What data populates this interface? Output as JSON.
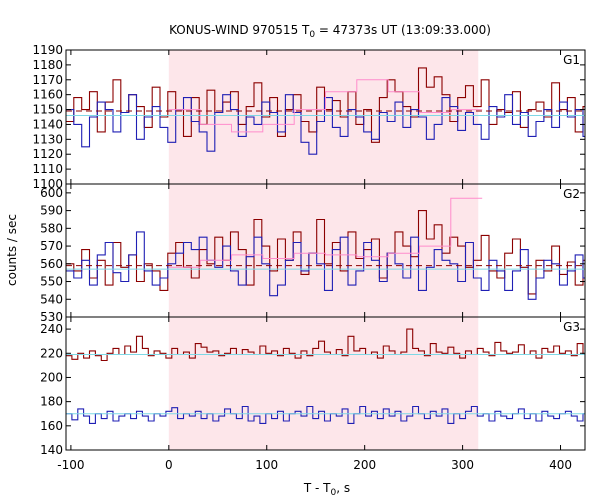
{
  "chart_data": {
    "type": "line",
    "title_main": "KONUS-WIND 970515 T",
    "title_sub": "0",
    "title_rest": " = 47373s UT (13:09:33.000)",
    "ylabel": "counts / sec",
    "xlabel_main": "T - T",
    "xlabel_sub": "0",
    "xlabel_rest": ", s",
    "xlim": [
      -105,
      425
    ],
    "xticks": [
      -100,
      0,
      100,
      200,
      300,
      400
    ],
    "shaded_interval": [
      0,
      316
    ],
    "colors": {
      "shade": "#fde6ea",
      "dark_red": "#8b0000",
      "blue": "#1f1fb4",
      "pink": "#ff8ccc",
      "cyan": "#7fd8e6"
    },
    "panels": [
      {
        "label": "G1",
        "ylim": [
          1100,
          1190
        ],
        "yticks": [
          1100,
          1110,
          1120,
          1130,
          1140,
          1150,
          1160,
          1170,
          1180,
          1190
        ],
        "series": [
          {
            "color": "dark_red",
            "dt": 8,
            "values": [
              1142,
              1158,
              1150,
              1162,
              1135,
              1155,
              1170,
              1148,
              1160,
              1152,
              1138,
              1165,
              1145,
              1162,
              1150,
              1132,
              1158,
              1140,
              1163,
              1148,
              1155,
              1162,
              1140,
              1152,
              1168,
              1145,
              1158,
              1132,
              1150,
              1160,
              1142,
              1135,
              1165,
              1150,
              1156,
              1145,
              1162,
              1140,
              1150,
              1128,
              1158,
              1170,
              1162,
              1152,
              1145,
              1178,
              1165,
              1172,
              1160,
              1142,
              1158,
              1166,
              1152,
              1170,
              1140,
              1150,
              1148,
              1162,
              1138,
              1150,
              1155,
              1145,
              1168,
              1150,
              1158,
              1135,
              1152,
              1140
            ]
          },
          {
            "color": "blue",
            "dt": 8,
            "values": [
              1150,
              1140,
              1125,
              1145,
              1155,
              1150,
              1135,
              1148,
              1160,
              1130,
              1145,
              1152,
              1138,
              1128,
              1150,
              1158,
              1142,
              1135,
              1122,
              1148,
              1160,
              1150,
              1132,
              1145,
              1140,
              1155,
              1148,
              1135,
              1160,
              1148,
              1128,
              1120,
              1142,
              1158,
              1138,
              1132,
              1150,
              1145,
              1135,
              1130,
              1148,
              1142,
              1155,
              1138,
              1150,
              1145,
              1130,
              1140,
              1158,
              1152,
              1136,
              1148,
              1140,
              1130,
              1152,
              1145,
              1160,
              1140,
              1148,
              1132,
              1142,
              1150,
              1138,
              1155,
              1145,
              1150,
              1132,
              1145
            ]
          }
        ],
        "bg_lines": [
          {
            "color": "dark_red",
            "value": 1149,
            "dashed": true
          },
          {
            "color": "cyan",
            "value": 1146,
            "dashed": false
          }
        ],
        "fit_line": {
          "color": "pink",
          "values": [
            1150,
            1140,
            1135,
            1140,
            1150,
            1162,
            1170,
            1162,
            1148,
            1150
          ],
          "dt": 32
        }
      },
      {
        "label": "G2",
        "ylim": [
          530,
          605
        ],
        "yticks": [
          530,
          540,
          550,
          560,
          570,
          580,
          590,
          600
        ],
        "series": [
          {
            "color": "dark_red",
            "dt": 8,
            "values": [
              560,
              556,
              568,
              552,
              562,
              548,
              572,
              558,
              565,
              550,
              560,
              556,
              545,
              566,
              572,
              558,
              552,
              568,
              560,
              575,
              562,
              578,
              568,
              548,
              585,
              570,
              556,
              574,
              562,
              578,
              554,
              566,
              585,
              560,
              572,
              556,
              578,
              563,
              568,
              574,
              552,
              566,
              578,
              570,
              564,
              590,
              574,
              582,
              566,
              575,
              570,
              558,
              562,
              576,
              556,
              552,
              566,
              574,
              558,
              543,
              562,
              556,
              570,
              554,
              561,
              548,
              562,
              556
            ]
          },
          {
            "color": "blue",
            "dt": 8,
            "values": [
              556,
              552,
              562,
              548,
              565,
              572,
              555,
              550,
              565,
              578,
              556,
              548,
              552,
              560,
              566,
              572,
              568,
              575,
              562,
              558,
              570,
              556,
              548,
              564,
              575,
              560,
              542,
              548,
              562,
              572,
              556,
              566,
              560,
              545,
              568,
              575,
              548,
              556,
              572,
              562,
              550,
              566,
              560,
              552,
              575,
              545,
              558,
              568,
              562,
              560,
              550,
              572,
              552,
              545,
              562,
              556,
              545,
              556,
              568,
              540,
              552,
              562,
              560,
              548,
              556,
              565,
              552,
              558
            ]
          }
        ],
        "bg_lines": [
          {
            "color": "dark_red",
            "value": 559,
            "dashed": true
          },
          {
            "color": "cyan",
            "value": 557,
            "dashed": false
          }
        ],
        "fit_line": {
          "color": "pink",
          "values": [
            558,
            562,
            565,
            563,
            566,
            565,
            564,
            566,
            570,
            597
          ],
          "dt": 32
        }
      },
      {
        "label": "G3",
        "ylim": [
          140,
          250
        ],
        "yticks": [
          140,
          160,
          180,
          200,
          220,
          240
        ],
        "series": [
          {
            "color": "dark_red",
            "dt": 6,
            "values": [
              218,
              215,
              220,
              216,
              222,
              218,
              214,
              220,
              224,
              219,
              226,
              221,
              234,
              224,
              218,
              222,
              220,
              216,
              224,
              219,
              221,
              216,
              228,
              225,
              221,
              222,
              218,
              220,
              224,
              219,
              223,
              221,
              219,
              226,
              220,
              222,
              218,
              224,
              220,
              216,
              222,
              218,
              224,
              230,
              221,
              219,
              223,
              218,
              234,
              222,
              224,
              219,
              221,
              216,
              226,
              222,
              219,
              221,
              240,
              224,
              222,
              218,
              228,
              221,
              220,
              225,
              220,
              216,
              222,
              219,
              224,
              221,
              218,
              229,
              222,
              220,
              221,
              227,
              219,
              222,
              216,
              224,
              221,
              226,
              220,
              222,
              218,
              228,
              219,
              222,
              224,
              220
            ]
          },
          {
            "color": "blue",
            "dt": 6,
            "values": [
              170,
              165,
              174,
              168,
              162,
              170,
              166,
              172,
              164,
              168,
              170,
              166,
              172,
              168,
              164,
              170,
              168,
              172,
              175,
              166,
              170,
              168,
              172,
              166,
              170,
              164,
              168,
              174,
              170,
              166,
              176,
              164,
              168,
              162,
              170,
              166,
              172,
              164,
              170,
              172,
              168,
              176,
              166,
              172,
              164,
              170,
              168,
              174,
              162,
              170,
              176,
              168,
              172,
              166,
              174,
              168,
              172,
              164,
              168,
              176,
              170,
              166,
              172,
              168,
              174,
              162,
              170,
              166,
              172,
              176,
              168,
              170,
              164,
              172,
              168,
              166,
              170,
              174,
              166,
              170,
              164,
              172,
              168,
              166,
              170,
              172,
              168,
              164,
              170,
              162,
              168,
              164
            ]
          }
        ],
        "bg_lines": [
          {
            "color": "cyan",
            "value": 219,
            "dashed": false
          },
          {
            "color": "cyan",
            "value": 170,
            "dashed": false
          }
        ],
        "fit_line": null
      }
    ]
  }
}
